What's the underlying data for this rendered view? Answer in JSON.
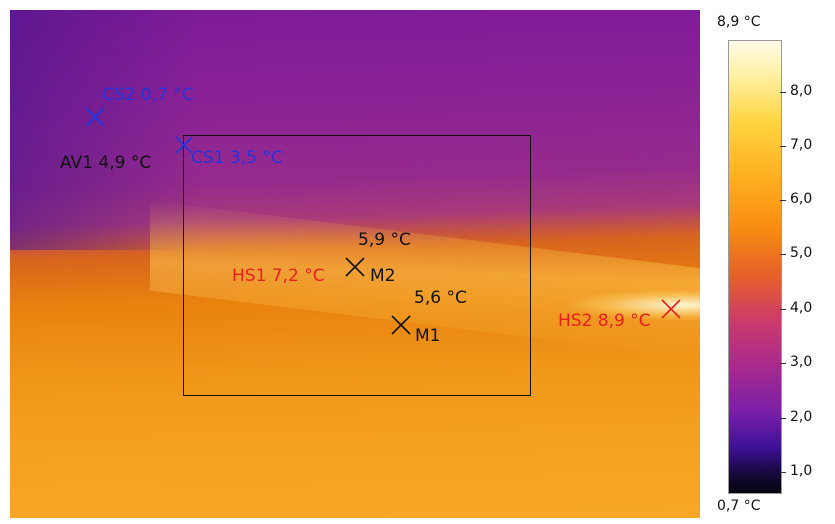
{
  "markers": {
    "cs2": {
      "label": "CS2 0,7 °C"
    },
    "cs1": {
      "label": "CS1 3,5 °C"
    },
    "av1": {
      "label": "AV1 4,9 °C"
    },
    "hs1": {
      "label": "HS1 7,2 °C"
    },
    "hs2": {
      "label": "HS2 8,9 °C"
    },
    "m1": {
      "name": "M1",
      "value": "5,6 °C"
    },
    "m2": {
      "name": "M2",
      "value": "5,9 °C"
    }
  },
  "scale": {
    "max_label": "8,9 °C",
    "min_label": "0,7 °C",
    "ticks": [
      "8,0",
      "7,0",
      "6,0",
      "5,0",
      "4,0",
      "3,0",
      "2,0",
      "1,0"
    ]
  },
  "colors": {
    "cold_marker": "#2633d8",
    "hot_marker": "#e81e1e",
    "measure_marker": "#111111"
  }
}
